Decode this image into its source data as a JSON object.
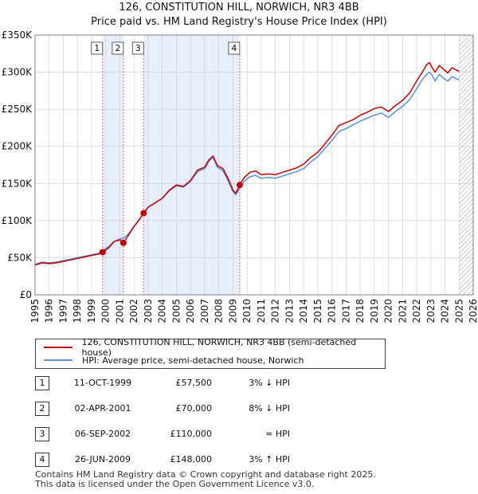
{
  "title": {
    "line1": "126, CONSTITUTION HILL, NORWICH, NR3 4BB",
    "line2": "Price paid vs. HM Land Registry's House Price Index (HPI)"
  },
  "colors": {
    "property_line": "#c00000",
    "hpi_line": "#5b8fd6",
    "sale_band": "#e8eefb",
    "marker_vline": "#d46a6a",
    "grid": "#cccccc"
  },
  "legend": {
    "property_label": "126, CONSTITUTION HILL, NORWICH, NR3 4BB (semi-detached house)",
    "hpi_label": "HPI: Average price, semi-detached house, Norwich"
  },
  "sales": [
    {
      "num": "1",
      "date": "11-OCT-1999",
      "price": "£57,500",
      "relation": "3% ↓ HPI"
    },
    {
      "num": "2",
      "date": "02-APR-2001",
      "price": "£70,000",
      "relation": "8% ↓ HPI"
    },
    {
      "num": "3",
      "date": "06-SEP-2002",
      "price": "£110,000",
      "relation": "≈ HPI"
    },
    {
      "num": "4",
      "date": "26-JUN-2009",
      "price": "£148,000",
      "relation": "3% ↑ HPI"
    }
  ],
  "footer": {
    "line1": "Contains HM Land Registry data © Crown copyright and database right 2025.",
    "line2": "This data is licensed under the Open Government Licence v3.0."
  },
  "chart_data": {
    "type": "line",
    "title": "126, CONSTITUTION HILL, NORWICH, NR3 4BB — Price paid vs. HM Land Registry's House Price Index (HPI)",
    "xlabel": "",
    "ylabel": "",
    "xlim": [
      1995,
      2026
    ],
    "ylim": [
      0,
      350000
    ],
    "xticks": [
      1995,
      1996,
      1997,
      1998,
      1999,
      2000,
      2001,
      2002,
      2003,
      2004,
      2005,
      2006,
      2007,
      2008,
      2009,
      2010,
      2011,
      2012,
      2013,
      2014,
      2015,
      2016,
      2017,
      2018,
      2019,
      2020,
      2021,
      2022,
      2023,
      2024,
      2025,
      2026
    ],
    "yticks": [
      0,
      50000,
      100000,
      150000,
      200000,
      250000,
      300000,
      350000
    ],
    "ytick_labels": [
      "£0",
      "£50K",
      "£100K",
      "£150K",
      "£200K",
      "£250K",
      "£300K",
      "£350K"
    ],
    "grid": true,
    "shaded_sale_periods": [
      [
        1999.78,
        2001.25
      ],
      [
        2002.68,
        2009.48
      ]
    ],
    "future_hatch_from": 2025.0,
    "sale_markers": [
      {
        "label": "1",
        "x": 1999.78,
        "y": 57500
      },
      {
        "label": "2",
        "x": 2001.25,
        "y": 70000
      },
      {
        "label": "3",
        "x": 2002.68,
        "y": 110000
      },
      {
        "label": "4",
        "x": 2009.48,
        "y": 148000
      }
    ],
    "series": [
      {
        "name": "126, CONSTITUTION HILL, NORWICH, NR3 4BB (semi-detached house)",
        "x": [
          1995.0,
          1995.5,
          1996.0,
          1996.5,
          1997.0,
          1997.5,
          1998.0,
          1998.5,
          1999.0,
          1999.5,
          1999.78,
          2000.2,
          2000.6,
          2001.0,
          2001.25,
          2001.6,
          2002.0,
          2002.4,
          2002.68,
          2003.0,
          2003.5,
          2004.0,
          2004.5,
          2005.0,
          2005.5,
          2006.0,
          2006.5,
          2007.0,
          2007.3,
          2007.6,
          2007.9,
          2008.3,
          2008.7,
          2009.0,
          2009.2,
          2009.48,
          2009.8,
          2010.2,
          2010.6,
          2011.0,
          2011.5,
          2012.0,
          2012.5,
          2013.0,
          2013.5,
          2014.0,
          2014.5,
          2015.0,
          2015.5,
          2016.0,
          2016.5,
          2017.0,
          2017.5,
          2018.0,
          2018.5,
          2019.0,
          2019.5,
          2020.0,
          2020.5,
          2021.0,
          2021.5,
          2022.0,
          2022.4,
          2022.7,
          2022.9,
          2023.1,
          2023.3,
          2023.6,
          2023.9,
          2024.2,
          2024.5,
          2024.8,
          2025.0
        ],
        "values": [
          40000,
          43000,
          42000,
          43000,
          45000,
          47000,
          49000,
          51000,
          53000,
          55000,
          57500,
          63000,
          72000,
          74000,
          70000,
          80000,
          92000,
          102000,
          110000,
          118000,
          124000,
          130000,
          141000,
          148000,
          146000,
          154000,
          168000,
          172000,
          182000,
          187000,
          174000,
          170000,
          155000,
          141000,
          137000,
          148000,
          158000,
          165000,
          167000,
          162000,
          163000,
          162000,
          165000,
          168000,
          171000,
          176000,
          185000,
          192000,
          203000,
          215000,
          228000,
          232000,
          236000,
          242000,
          246000,
          251000,
          253000,
          247000,
          255000,
          262000,
          272000,
          288000,
          300000,
          310000,
          313000,
          306000,
          300000,
          309000,
          304000,
          299000,
          306000,
          303000,
          301000
        ]
      },
      {
        "name": "HPI: Average price, semi-detached house, Norwich",
        "x": [
          1995.0,
          1995.5,
          1996.0,
          1996.5,
          1997.0,
          1997.5,
          1998.0,
          1998.5,
          1999.0,
          1999.5,
          1999.78,
          2000.2,
          2000.6,
          2001.0,
          2001.25,
          2001.6,
          2002.0,
          2002.4,
          2002.68,
          2003.0,
          2003.5,
          2004.0,
          2004.5,
          2005.0,
          2005.5,
          2006.0,
          2006.5,
          2007.0,
          2007.3,
          2007.6,
          2007.9,
          2008.3,
          2008.7,
          2009.0,
          2009.2,
          2009.48,
          2009.8,
          2010.2,
          2010.6,
          2011.0,
          2011.5,
          2012.0,
          2012.5,
          2013.0,
          2013.5,
          2014.0,
          2014.5,
          2015.0,
          2015.5,
          2016.0,
          2016.5,
          2017.0,
          2017.5,
          2018.0,
          2018.5,
          2019.0,
          2019.5,
          2020.0,
          2020.5,
          2021.0,
          2021.5,
          2022.0,
          2022.4,
          2022.7,
          2022.9,
          2023.1,
          2023.3,
          2023.6,
          2023.9,
          2024.2,
          2024.5,
          2024.8,
          2025.0
        ],
        "values": [
          41000,
          44000,
          43000,
          44000,
          46000,
          48000,
          50000,
          52000,
          54000,
          56000,
          59000,
          65000,
          72000,
          75000,
          76000,
          82000,
          92000,
          102000,
          110000,
          118000,
          124000,
          130000,
          140000,
          147000,
          145000,
          153000,
          166000,
          170000,
          180000,
          185000,
          172000,
          167000,
          152000,
          139000,
          135000,
          143000,
          153000,
          159000,
          161000,
          157000,
          158000,
          157000,
          160000,
          163000,
          166000,
          170000,
          179000,
          186000,
          197000,
          208000,
          220000,
          224000,
          229000,
          234000,
          238000,
          242000,
          245000,
          239000,
          247000,
          254000,
          263000,
          278000,
          290000,
          297000,
          300000,
          296000,
          288000,
          297000,
          292000,
          288000,
          294000,
          291000,
          290000
        ]
      }
    ]
  }
}
